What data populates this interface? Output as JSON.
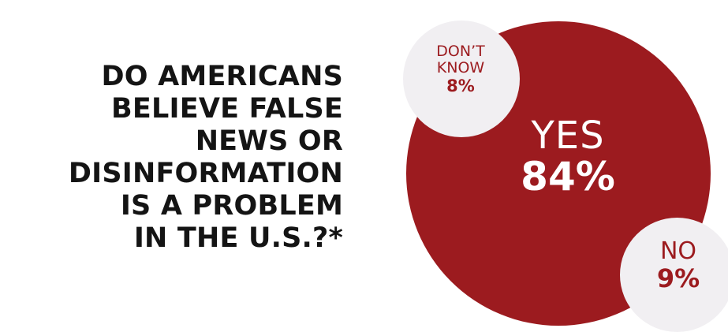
{
  "title_lines": [
    "DO AMERICANS",
    "BELIEVE FALSE",
    "NEWS OR",
    "DISINFORMATION",
    "IS A PROBLEM",
    "IN THE U.S.?*"
  ],
  "colors": {
    "primary": "#9c1b1f",
    "bubble": "#f1eff2",
    "title": "#141414"
  },
  "chart_data": {
    "type": "pie",
    "categories": [
      "YES",
      "NO",
      "DON’T KNOW"
    ],
    "values": [
      84,
      9,
      8
    ],
    "value_labels": [
      "84%",
      "9%",
      "8%"
    ],
    "title": "DO AMERICANS BELIEVE FALSE NEWS OR DISINFORMATION IS A PROBLEM IN THE U.S.?*",
    "dont_know_label_lines": [
      "DON’T",
      "KNOW"
    ]
  }
}
